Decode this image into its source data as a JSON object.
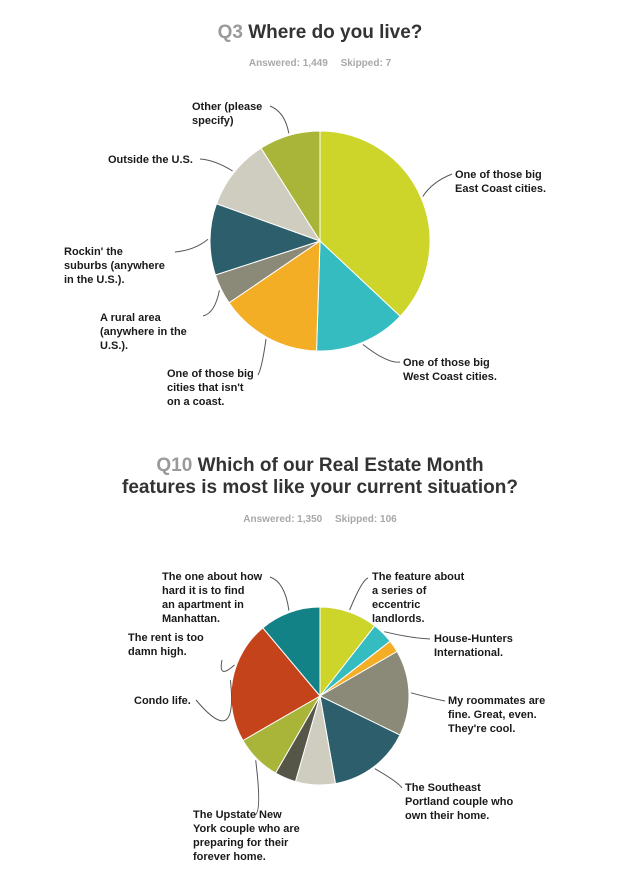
{
  "charts": [
    {
      "question_number": "Q3",
      "question_text": "Where do you live?",
      "answered": "Answered: 1,449",
      "skipped": "Skipped: 7"
    },
    {
      "question_number": "Q10",
      "question_text_line1": "Which of our Real Estate Month",
      "question_text_line2": "features is most like your current situation?",
      "answered": "Answered: 1,350",
      "skipped": "Skipped: 106"
    }
  ],
  "chart_data": [
    {
      "type": "pie",
      "title": "Q3 Where do you live?",
      "slices": [
        {
          "label": "One of those big East Coast cities.",
          "value": 37.0,
          "color": "#cdd52a"
        },
        {
          "label": "One of those big West Coast cities.",
          "value": 13.5,
          "color": "#35bcc0"
        },
        {
          "label": "One of those big cities that isn't on a coast.",
          "value": 15.0,
          "color": "#f4ae25"
        },
        {
          "label": "A rural area (anywhere in the U.S.).",
          "value": 4.5,
          "color": "#8b8a78"
        },
        {
          "label": "Rockin' the suburbs (anywhere in the U.S.).",
          "value": 10.5,
          "color": "#2c5f6b"
        },
        {
          "label": "Outside the U.S.",
          "value": 10.5,
          "color": "#cfcdc0"
        },
        {
          "label": "Other (please specify)",
          "value": 9.0,
          "color": "#a9b538"
        }
      ]
    },
    {
      "type": "pie",
      "title": "Q10 Which of our Real Estate Month features is most like your current situation?",
      "slices": [
        {
          "label": "The feature about a series of eccentric landlords.",
          "value": 9.5,
          "color": "#cdd52a"
        },
        {
          "label": "House-Hunters International.",
          "value": 3.5,
          "color": "#35bcc0"
        },
        {
          "label": "",
          "value": 2.0,
          "color": "#f4ae25"
        },
        {
          "label": "My roommates are fine. Great, even. They're cool.",
          "value": 14.0,
          "color": "#8b8a78"
        },
        {
          "label": "The Southeast Portland couple who own their home.",
          "value": 13.5,
          "color": "#2c5f6b"
        },
        {
          "label": "",
          "value": 6.5,
          "color": "#cfcdc0"
        },
        {
          "label": "",
          "value": 3.5,
          "color": "#555548"
        },
        {
          "label": "The Upstate New York couple who are preparing for their forever home.",
          "value": 7.5,
          "color": "#a9b538"
        },
        {
          "label": "Condo life.",
          "value": 20.0,
          "color": "#c5431a"
        },
        {
          "label": "The rent is too damn high.",
          "value": 0,
          "color": "#c5431a"
        },
        {
          "label": "The one about how hard it is to find an apartment in Manhattan.",
          "value": 10.0,
          "color": "#138287"
        }
      ],
      "label_lines": {
        "The feature about a series of eccentric landlords.": [
          "The feature about",
          "a series of",
          "eccentric",
          "landlords."
        ],
        "House-Hunters International.": [
          "House-Hunters",
          "International."
        ],
        "My roommates are fine. Great, even. They're cool.": [
          "My roommates are",
          "fine. Great, even.",
          "They're cool."
        ],
        "The Southeast Portland couple who own their home.": [
          "The Southeast",
          "Portland couple who",
          "own their home."
        ],
        "The Upstate New York couple who are preparing for their forever home.": [
          "The Upstate New",
          "York couple who are",
          "preparing for their",
          "forever home."
        ],
        "Condo life.": [
          "Condo life."
        ],
        "The rent is too damn high.": [
          "The rent is too",
          "damn high."
        ],
        "The one about how hard it is to find an apartment in Manhattan.": [
          "The one about how",
          "hard it is to find",
          "an apartment in",
          "Manhattan."
        ]
      }
    }
  ],
  "q3_label_lines": {
    "One of those big East Coast cities.": [
      "One of those big",
      "East Coast cities."
    ],
    "One of those big West Coast cities.": [
      "One of those big",
      "West Coast cities."
    ],
    "One of those big cities that isn't on a coast.": [
      "One of those big",
      "cities that isn't",
      "on a coast."
    ],
    "A rural area (anywhere in the U.S.).": [
      "A rural area",
      "(anywhere in the",
      "U.S.)."
    ],
    "Rockin' the suburbs (anywhere in the U.S.).": [
      "Rockin' the",
      "suburbs (anywhere",
      "in the U.S.)."
    ],
    "Outside the U.S.": [
      "Outside the U.S."
    ],
    "Other (please specify)": [
      "Other (please",
      "specify)"
    ]
  }
}
